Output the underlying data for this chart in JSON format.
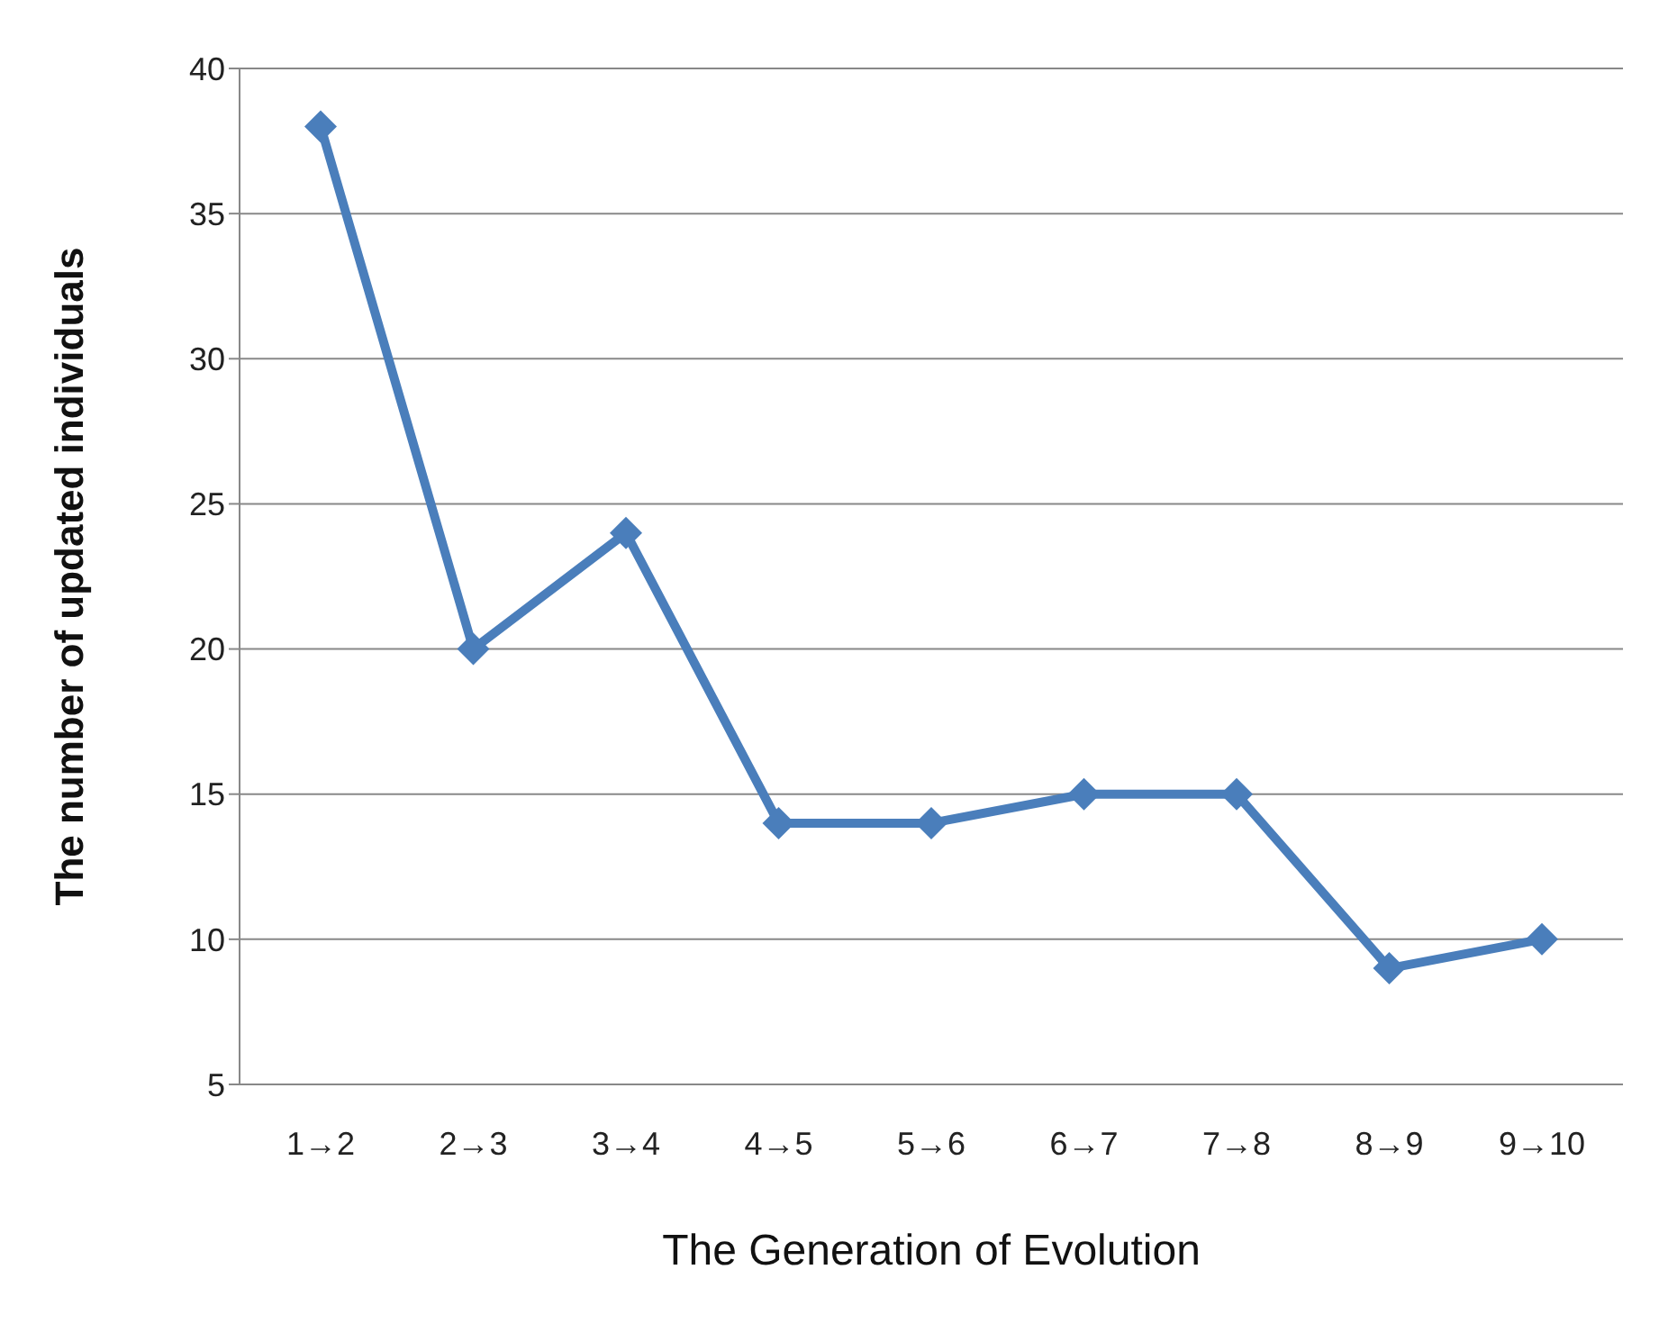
{
  "chart_data": {
    "type": "line",
    "xlabel": "The Generation  of Evolution",
    "ylabel": "The number of updated  individuals",
    "categories": [
      "1→2",
      "2→3",
      "3→4",
      "4→5",
      "5→6",
      "6→7",
      "7→8",
      "8→9",
      "9→10"
    ],
    "series": [
      {
        "color": "#4a7ebb",
        "values": [
          38,
          20,
          24,
          14,
          14,
          15,
          15,
          9,
          10
        ]
      }
    ],
    "ylim": [
      5,
      40
    ],
    "yticks": [
      5,
      10,
      15,
      20,
      25,
      30,
      35,
      40
    ],
    "grid": "y",
    "marker": "diamond",
    "line_style": "solid",
    "legend": false
  }
}
